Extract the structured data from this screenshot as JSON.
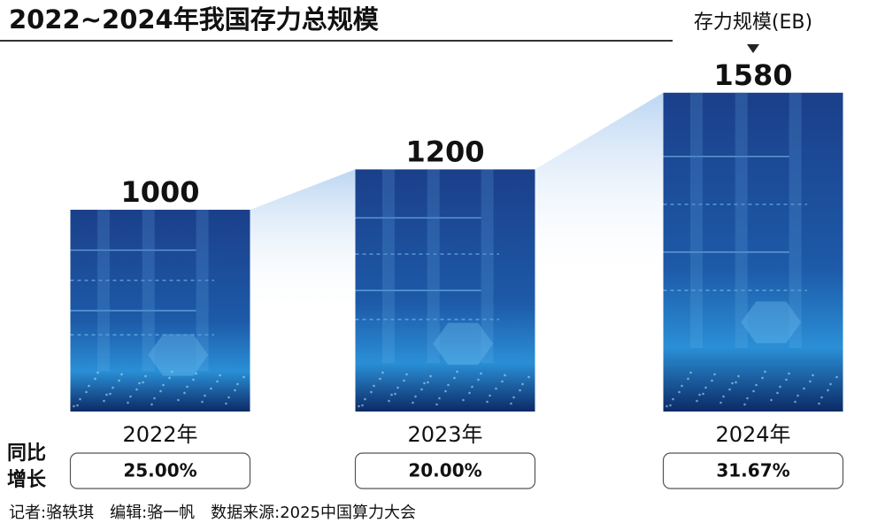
{
  "chart_data": {
    "type": "bar",
    "title": "2022~2024年我国存力总规模",
    "unit_label": "存力规模(EB)",
    "categories": [
      "2022年",
      "2023年",
      "2024年"
    ],
    "values": [
      1000,
      1200,
      1580
    ],
    "growth_label": "同比增长",
    "growth": [
      25,
      20,
      31.67
    ],
    "growth_labels": [
      "25.00%",
      "20.00%",
      "31.67%"
    ],
    "footer": "记者:骆轶琪　编辑:骆一帆　数据来源:2025中国算力大会"
  }
}
